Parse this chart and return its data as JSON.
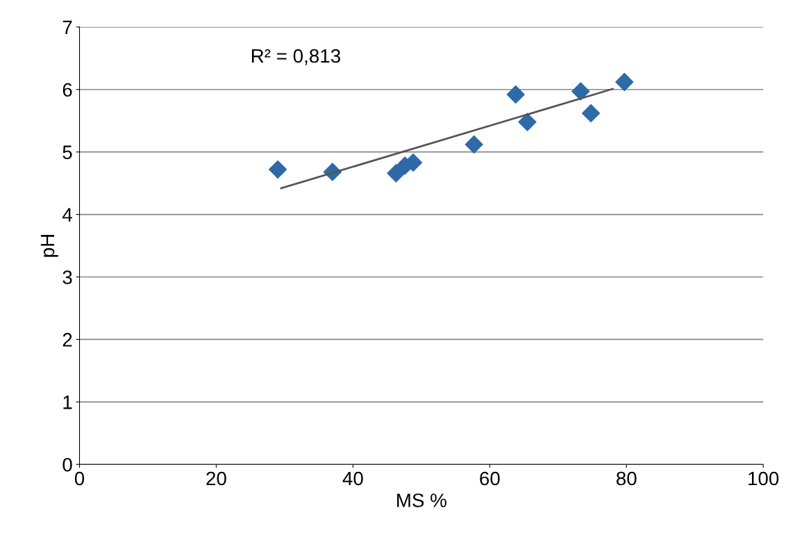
{
  "chart_data": {
    "type": "scatter",
    "xlabel": "MS %",
    "ylabel": "pH",
    "series": [
      {
        "color": "#2e6aa8",
        "marker": "diamond",
        "x": [
          29,
          37,
          46.3,
          47.6,
          48.8,
          57.7,
          63.8,
          65.5,
          73.3,
          74.8,
          79.7
        ],
        "values": [
          4.72,
          4.68,
          4.66,
          4.78,
          4.83,
          5.12,
          5.92,
          5.48,
          5.97,
          5.62,
          6.12
        ]
      },
      {
        "type": "line",
        "color": "#555555",
        "x": [
          29.5,
          78
        ],
        "values": [
          4.42,
          6.01
        ]
      }
    ],
    "xlim": [
      0,
      100
    ],
    "xticks": [
      0,
      20,
      40,
      60,
      80,
      100
    ],
    "ylim": [
      0,
      7
    ],
    "yticks": [
      0,
      1,
      2,
      3,
      4,
      5,
      6,
      7
    ],
    "grid": "y",
    "annotations": [
      "R² = 0,813"
    ]
  }
}
